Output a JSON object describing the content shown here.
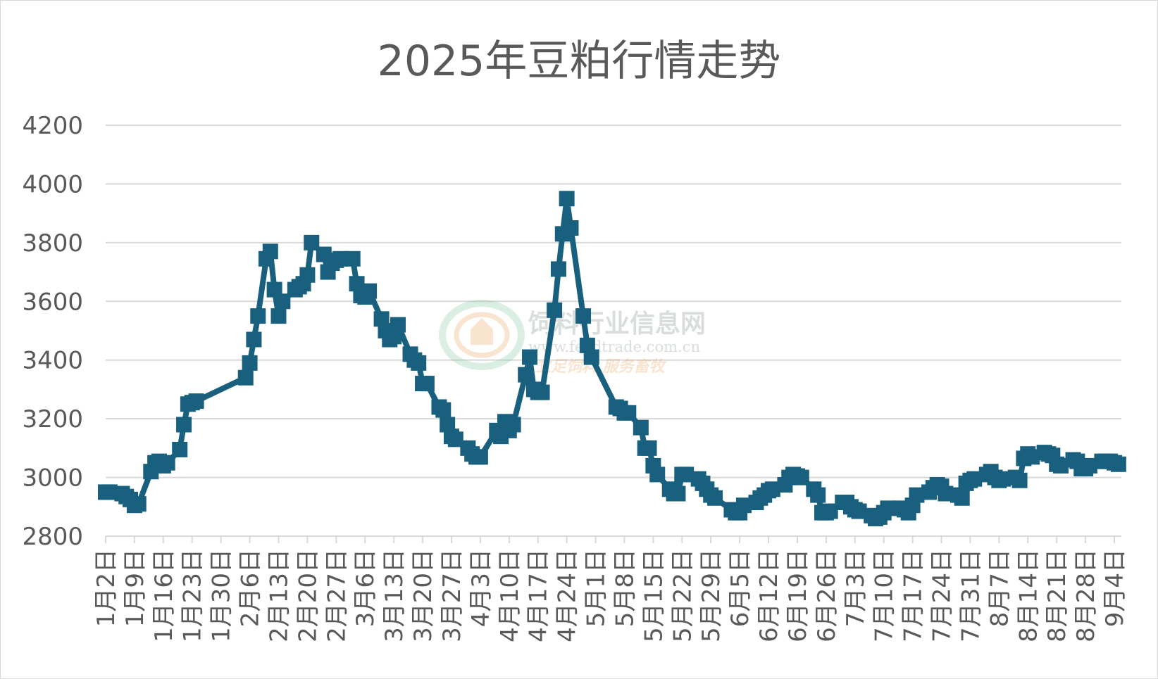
{
  "chart_data": {
    "type": "line",
    "title": "2025年豆粕行情走势",
    "xlabel": "",
    "ylabel": "",
    "ylim": [
      2800,
      4200
    ],
    "yticks": [
      2800,
      3000,
      3200,
      3400,
      3600,
      3800,
      4000,
      4200
    ],
    "grid": true,
    "legend": "none",
    "color": "#19607f",
    "tick_labels": [
      "1月2日",
      "1月9日",
      "1月16日",
      "1月23日",
      "1月30日",
      "2月6日",
      "2月13日",
      "2月20日",
      "2月27日",
      "3月6日",
      "3月13日",
      "3月20日",
      "3月27日",
      "4月3日",
      "4月10日",
      "4月17日",
      "4月24日",
      "5月1日",
      "5月8日",
      "5月15日",
      "5月22日",
      "5月29日",
      "6月5日",
      "6月12日",
      "6月19日",
      "6月26日",
      "7月3日",
      "7月10日",
      "7月17日",
      "7月24日",
      "7月31日",
      "8月7日",
      "8月14日",
      "8月21日",
      "8月28日",
      "9月4日"
    ],
    "points": [
      [
        "1月2日",
        2950
      ],
      [
        "1月3日",
        2950
      ],
      [
        "1月6日",
        2945
      ],
      [
        "1月7日",
        2935
      ],
      [
        "1月8日",
        2925
      ],
      [
        "1月9日",
        2905
      ],
      [
        "1月10日",
        2910
      ],
      [
        "1月13日",
        3020
      ],
      [
        "1月14日",
        3050
      ],
      [
        "1月15日",
        3055
      ],
      [
        "1月16日",
        3040
      ],
      [
        "1月17日",
        3050
      ],
      [
        "1月20日",
        3095
      ],
      [
        "1月21日",
        3180
      ],
      [
        "1月22日",
        3250
      ],
      [
        "1月23日",
        3255
      ],
      [
        "1月24日",
        3260
      ],
      [
        "2月5日",
        3340
      ],
      [
        "2月6日",
        3390
      ],
      [
        "2月7日",
        3470
      ],
      [
        "2月8日",
        3550
      ],
      [
        "2月10日",
        3745
      ],
      [
        "2月11日",
        3770
      ],
      [
        "2月12日",
        3640
      ],
      [
        "2月13日",
        3550
      ],
      [
        "2月14日",
        3600
      ],
      [
        "2月17日",
        3640
      ],
      [
        "2月18日",
        3650
      ],
      [
        "2月19日",
        3660
      ],
      [
        "2月20日",
        3690
      ],
      [
        "2月21日",
        3800
      ],
      [
        "2月24日",
        3760
      ],
      [
        "2月25日",
        3700
      ],
      [
        "2月26日",
        3730
      ],
      [
        "2月27日",
        3740
      ],
      [
        "2月28日",
        3745
      ],
      [
        "3月3日",
        3745
      ],
      [
        "3月4日",
        3660
      ],
      [
        "3月5日",
        3620
      ],
      [
        "3月6日",
        3615
      ],
      [
        "3月7日",
        3635
      ],
      [
        "3月10日",
        3540
      ],
      [
        "3月11日",
        3500
      ],
      [
        "3月12日",
        3470
      ],
      [
        "3月13日",
        3480
      ],
      [
        "3月14日",
        3520
      ],
      [
        "3月17日",
        3420
      ],
      [
        "3月18日",
        3400
      ],
      [
        "3月19日",
        3390
      ],
      [
        "3月20日",
        3320
      ],
      [
        "3月21日",
        3320
      ],
      [
        "3月24日",
        3240
      ],
      [
        "3月25日",
        3230
      ],
      [
        "3月26日",
        3180
      ],
      [
        "3月27日",
        3140
      ],
      [
        "3月28日",
        3130
      ],
      [
        "3月31日",
        3100
      ],
      [
        "4月1日",
        3080
      ],
      [
        "4月2日",
        3070
      ],
      [
        "4月3日",
        3070
      ],
      [
        "4月7日",
        3160
      ],
      [
        "4月8日",
        3140
      ],
      [
        "4月9日",
        3190
      ],
      [
        "4月10日",
        3160
      ],
      [
        "4月11日",
        3180
      ],
      [
        "4月14日",
        3350
      ],
      [
        "4月15日",
        3410
      ],
      [
        "4月16日",
        3300
      ],
      [
        "4月17日",
        3290
      ],
      [
        "4月18日",
        3290
      ],
      [
        "4月21日",
        3570
      ],
      [
        "4月22日",
        3710
      ],
      [
        "4月23日",
        3830
      ],
      [
        "4月24日",
        3950
      ],
      [
        "4月25日",
        3850
      ],
      [
        "4月28日",
        3550
      ],
      [
        "4月29日",
        3450
      ],
      [
        "4月30日",
        3410
      ],
      [
        "5月6日",
        3240
      ],
      [
        "5月7日",
        3235
      ],
      [
        "5月8日",
        3220
      ],
      [
        "5月9日",
        3220
      ],
      [
        "5月12日",
        3170
      ],
      [
        "5月13日",
        3100
      ],
      [
        "5月14日",
        3100
      ],
      [
        "5月15日",
        3040
      ],
      [
        "5月16日",
        3010
      ],
      [
        "5月19日",
        2960
      ],
      [
        "5月20日",
        2945
      ],
      [
        "5月21日",
        2945
      ],
      [
        "5月22日",
        3010
      ],
      [
        "5月23日",
        3010
      ],
      [
        "5月26日",
        2995
      ],
      [
        "5月27日",
        2980
      ],
      [
        "5月28日",
        2960
      ],
      [
        "5月29日",
        2940
      ],
      [
        "5月30日",
        2930
      ],
      [
        "6月3日",
        2890
      ],
      [
        "6月4日",
        2880
      ],
      [
        "6月5日",
        2880
      ],
      [
        "6月6日",
        2905
      ],
      [
        "6月9日",
        2915
      ],
      [
        "6月10日",
        2930
      ],
      [
        "6月11日",
        2940
      ],
      [
        "6月12日",
        2955
      ],
      [
        "6月13日",
        2960
      ],
      [
        "6月16日",
        2975
      ],
      [
        "6月17日",
        3000
      ],
      [
        "6月18日",
        3010
      ],
      [
        "6月19日",
        3005
      ],
      [
        "6月20日",
        3000
      ],
      [
        "6月23日",
        2960
      ],
      [
        "6月24日",
        2940
      ],
      [
        "6月25日",
        2880
      ],
      [
        "6月26日",
        2880
      ],
      [
        "6月27日",
        2885
      ],
      [
        "6月30日",
        2915
      ],
      [
        "7月1日",
        2915
      ],
      [
        "7月2日",
        2900
      ],
      [
        "7月3日",
        2890
      ],
      [
        "7月4日",
        2885
      ],
      [
        "7月7日",
        2870
      ],
      [
        "7月8日",
        2860
      ],
      [
        "7月9日",
        2865
      ],
      [
        "7月10日",
        2880
      ],
      [
        "7月11日",
        2895
      ],
      [
        "7月14日",
        2895
      ],
      [
        "7月15日",
        2890
      ],
      [
        "7月16日",
        2880
      ],
      [
        "7月17日",
        2905
      ],
      [
        "7月18日",
        2940
      ],
      [
        "7月21日",
        2950
      ],
      [
        "7月22日",
        2965
      ],
      [
        "7月23日",
        2975
      ],
      [
        "7月24日",
        2970
      ],
      [
        "7月25日",
        2945
      ],
      [
        "7月28日",
        2940
      ],
      [
        "7月29日",
        2930
      ],
      [
        "7月30日",
        2980
      ],
      [
        "7月31日",
        2990
      ],
      [
        "8月1日",
        2995
      ],
      [
        "8月4日",
        3010
      ],
      [
        "8月5日",
        3020
      ],
      [
        "8月6日",
        3000
      ],
      [
        "8月7日",
        2990
      ],
      [
        "8月8日",
        2995
      ],
      [
        "8月11日",
        3000
      ],
      [
        "8月12日",
        2990
      ],
      [
        "8月13日",
        3065
      ],
      [
        "8月14日",
        3080
      ],
      [
        "8月15日",
        3070
      ],
      [
        "8月18日",
        3085
      ],
      [
        "8月19日",
        3080
      ],
      [
        "8月20日",
        3075
      ],
      [
        "8月21日",
        3045
      ],
      [
        "8月22Day",
        3040
      ],
      [
        "8月25日",
        3060
      ],
      [
        "8月26日",
        3055
      ],
      [
        "8月27日",
        3030
      ],
      [
        "8月28日",
        3030
      ],
      [
        "8月29日",
        3040
      ],
      [
        "9月1日",
        3055
      ],
      [
        "9月2日",
        3055
      ],
      [
        "9月3日",
        3055
      ],
      [
        "9月4日",
        3050
      ],
      [
        "9月5日",
        3045
      ]
    ]
  },
  "watermark": {
    "name": "饲料行业信息网",
    "url": "www.feedtrade.com.cn",
    "slogan": "立足饲料    服务畜牧"
  }
}
